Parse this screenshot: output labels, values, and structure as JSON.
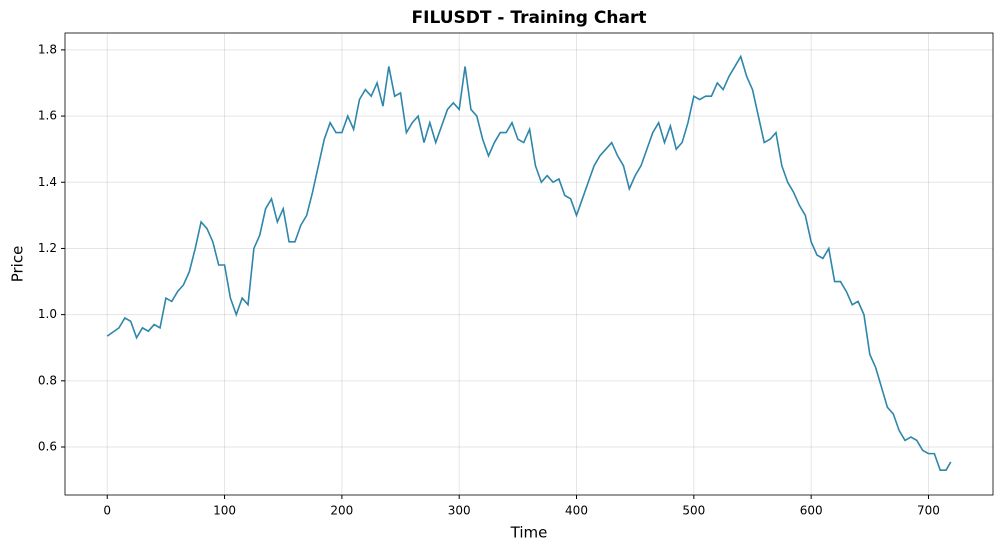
{
  "chart_data": {
    "type": "line",
    "title": "FILUSDT - Training Chart",
    "x_label": "Time",
    "y_label": "Price",
    "x": [
      0,
      10,
      15,
      20,
      25,
      30,
      35,
      40,
      45,
      50,
      55,
      60,
      65,
      70,
      75,
      80,
      85,
      90,
      95,
      100,
      105,
      110,
      115,
      120,
      125,
      130,
      135,
      140,
      145,
      150,
      155,
      160,
      165,
      170,
      175,
      180,
      185,
      190,
      195,
      200,
      205,
      210,
      215,
      220,
      225,
      230,
      235,
      240,
      245,
      250,
      255,
      260,
      265,
      270,
      275,
      280,
      285,
      290,
      295,
      300,
      305,
      310,
      315,
      320,
      325,
      330,
      335,
      340,
      345,
      350,
      355,
      360,
      365,
      370,
      375,
      380,
      385,
      390,
      395,
      400,
      405,
      410,
      415,
      420,
      425,
      430,
      435,
      440,
      445,
      450,
      455,
      460,
      465,
      470,
      475,
      480,
      485,
      490,
      495,
      500,
      505,
      510,
      515,
      520,
      525,
      530,
      535,
      540,
      545,
      550,
      555,
      560,
      565,
      570,
      575,
      580,
      585,
      590,
      595,
      600,
      605,
      610,
      615,
      620,
      625,
      630,
      635,
      640,
      645,
      650,
      655,
      660,
      665,
      670,
      675,
      680,
      685,
      690,
      695,
      700,
      705,
      710,
      715,
      719
    ],
    "series": [
      {
        "color": "#2e86ab",
        "values": [
          0.935,
          0.96,
          0.99,
          0.98,
          0.93,
          0.96,
          0.95,
          0.97,
          0.96,
          1.05,
          1.04,
          1.07,
          1.09,
          1.13,
          1.2,
          1.28,
          1.26,
          1.22,
          1.15,
          1.15,
          1.05,
          1.0,
          1.05,
          1.03,
          1.2,
          1.24,
          1.32,
          1.35,
          1.28,
          1.32,
          1.22,
          1.22,
          1.27,
          1.3,
          1.37,
          1.45,
          1.53,
          1.58,
          1.55,
          1.55,
          1.6,
          1.56,
          1.65,
          1.68,
          1.66,
          1.7,
          1.63,
          1.75,
          1.66,
          1.67,
          1.55,
          1.58,
          1.6,
          1.52,
          1.58,
          1.52,
          1.57,
          1.62,
          1.64,
          1.62,
          1.75,
          1.62,
          1.6,
          1.53,
          1.48,
          1.52,
          1.55,
          1.55,
          1.58,
          1.53,
          1.52,
          1.56,
          1.45,
          1.4,
          1.42,
          1.4,
          1.41,
          1.36,
          1.35,
          1.3,
          1.35,
          1.4,
          1.45,
          1.48,
          1.5,
          1.52,
          1.48,
          1.45,
          1.38,
          1.42,
          1.45,
          1.5,
          1.55,
          1.58,
          1.52,
          1.57,
          1.5,
          1.52,
          1.58,
          1.66,
          1.65,
          1.66,
          1.66,
          1.7,
          1.68,
          1.72,
          1.75,
          1.78,
          1.72,
          1.68,
          1.6,
          1.52,
          1.53,
          1.55,
          1.45,
          1.4,
          1.37,
          1.33,
          1.3,
          1.22,
          1.18,
          1.17,
          1.2,
          1.1,
          1.1,
          1.07,
          1.03,
          1.04,
          1.0,
          0.88,
          0.84,
          0.78,
          0.72,
          0.7,
          0.65,
          0.62,
          0.63,
          0.62,
          0.59,
          0.58,
          0.58,
          0.53,
          0.53,
          0.555
        ]
      }
    ],
    "xlim": [
      -36,
      755
    ],
    "ylim": [
      0.455,
      1.851
    ],
    "xticks": [
      0,
      100,
      200,
      300,
      400,
      500,
      600,
      700
    ],
    "yticks": [
      0.6,
      0.8,
      {
        "value": 1,
        "label": "1.0"
      },
      1.2,
      1.4,
      1.6,
      1.8
    ],
    "grid": true
  }
}
